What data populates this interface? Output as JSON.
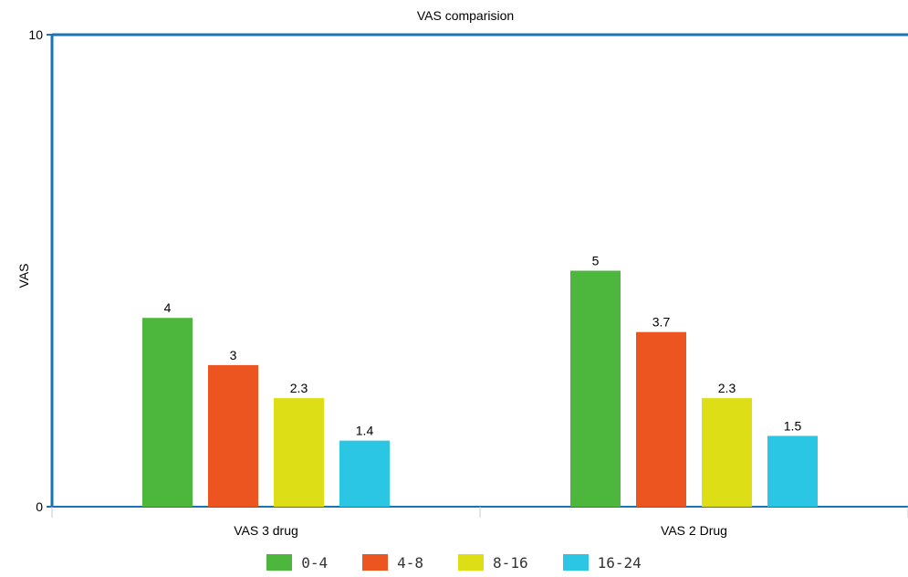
{
  "chart_data": {
    "type": "bar",
    "title": "VAS comparision",
    "xlabel": "",
    "ylabel": "VAS",
    "ylim": [
      0,
      10
    ],
    "y_ticks": [
      0,
      10
    ],
    "categories": [
      "VAS 3 drug",
      "VAS 2 Drug"
    ],
    "series": [
      {
        "name": "0-4",
        "color": "#4db63c",
        "values": [
          4,
          5
        ]
      },
      {
        "name": "4-8",
        "color": "#ec5520",
        "values": [
          3,
          3.7
        ]
      },
      {
        "name": "8-16",
        "color": "#dede16",
        "values": [
          2.3,
          2.3
        ]
      },
      {
        "name": "16-24",
        "color": "#2ac6e4",
        "values": [
          1.4,
          1.5
        ]
      }
    ],
    "data_labels": [
      [
        "4",
        "5"
      ],
      [
        "3",
        "3.7"
      ],
      [
        "2.3",
        "2.3"
      ],
      [
        "1.4",
        "1.5"
      ]
    ],
    "grid": false,
    "legend_position": "bottom",
    "axis_color": "#1a73b5"
  }
}
